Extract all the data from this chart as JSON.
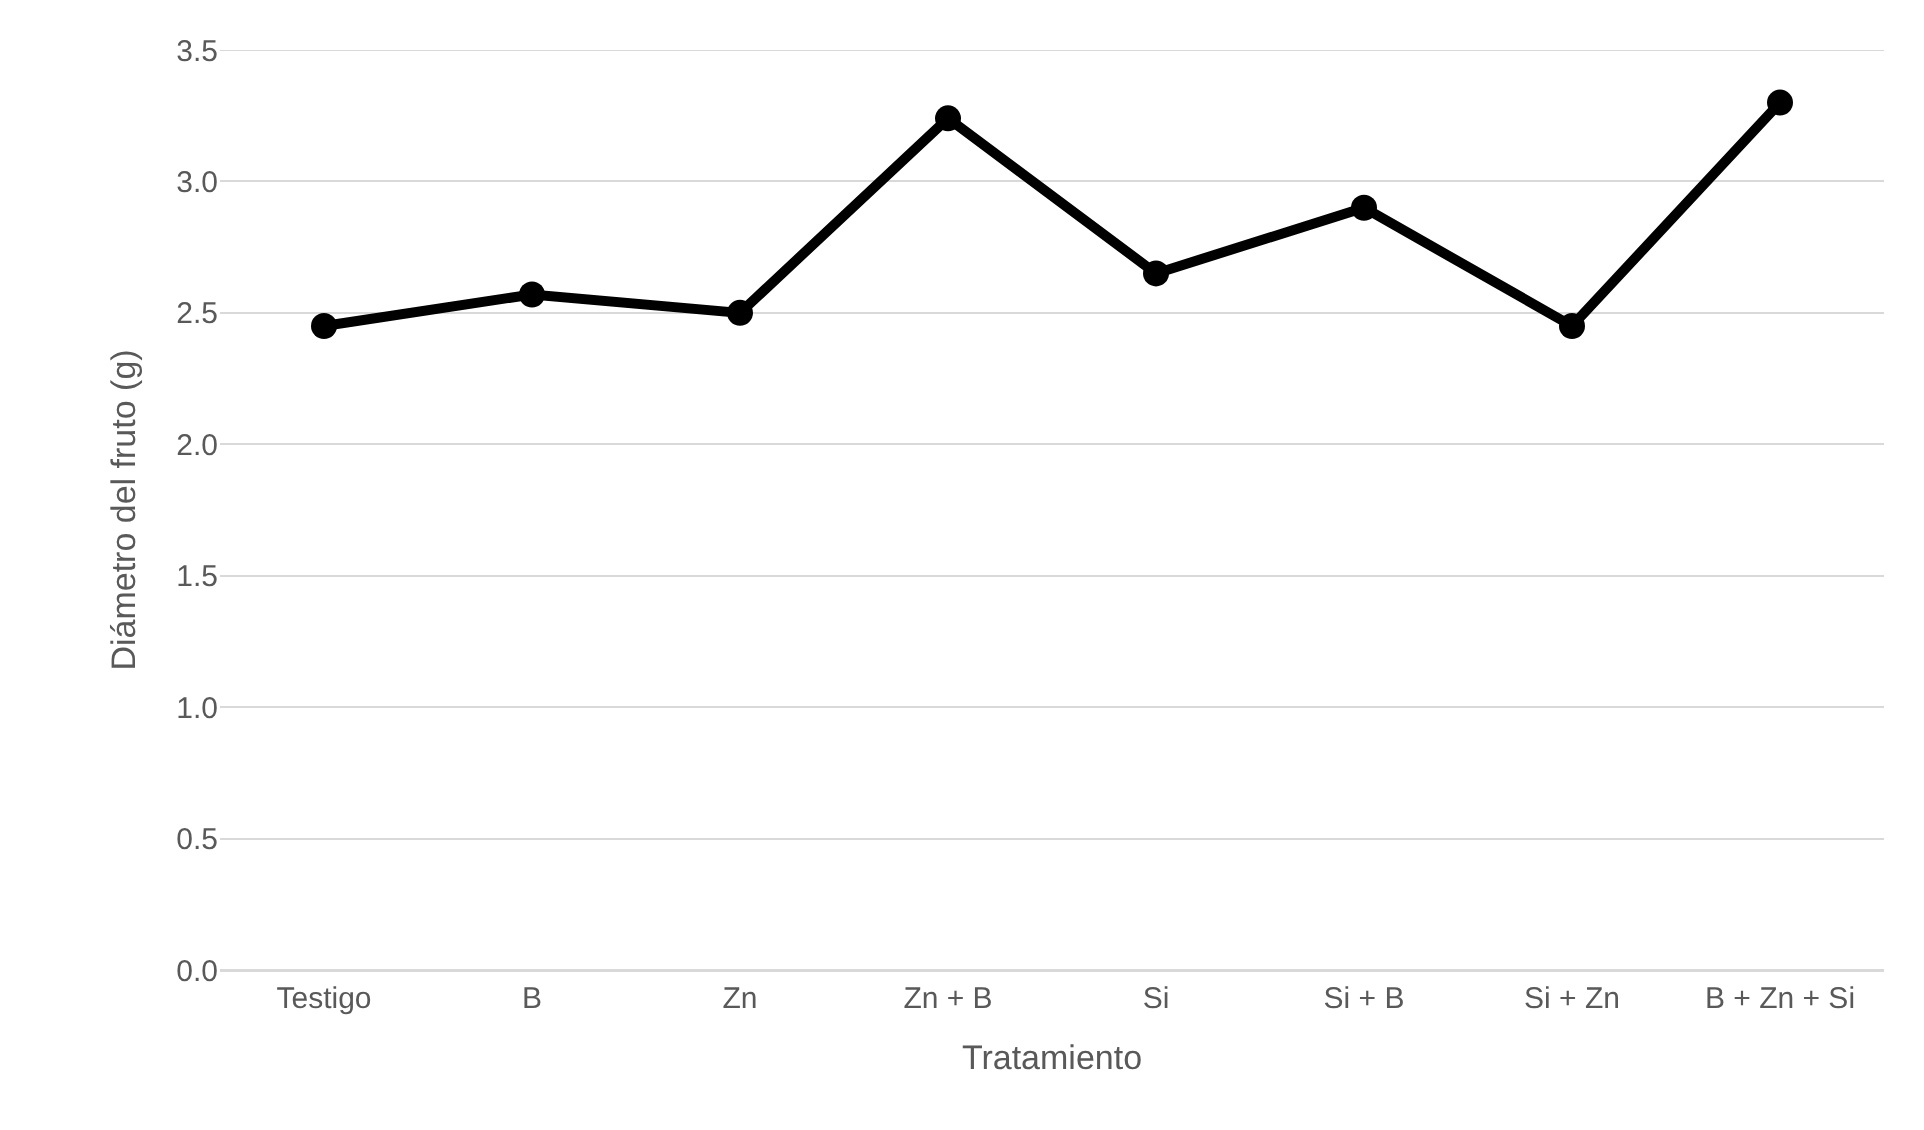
{
  "chart_data": {
    "type": "line",
    "xlabel": "Tratamiento",
    "ylabel": "Diámetro del fruto (g)",
    "categories": [
      "Testigo",
      "B",
      "Zn",
      "Zn + B",
      "Si",
      "Si + B",
      "Si + Zn",
      "B + Zn + Si"
    ],
    "series": [
      {
        "color": "#000000",
        "values": [
          2.45,
          2.57,
          2.5,
          3.24,
          2.65,
          2.9,
          2.45,
          3.3
        ]
      }
    ],
    "ylim": [
      0,
      3.5
    ],
    "yticks": [
      {
        "value": 0,
        "label": "0.0"
      },
      {
        "value": 0.5,
        "label": "0.5"
      },
      {
        "value": 1,
        "label": "1.0"
      },
      {
        "value": 1.5,
        "label": "1.5"
      },
      {
        "value": 2,
        "label": "2.0"
      },
      {
        "value": 2.5,
        "label": "2.5"
      },
      {
        "value": 3,
        "label": "3.0"
      },
      {
        "value": 3.5,
        "label": "3.5"
      }
    ],
    "grid": "y",
    "marker": "circle",
    "line_style": "solid",
    "legend": false
  }
}
